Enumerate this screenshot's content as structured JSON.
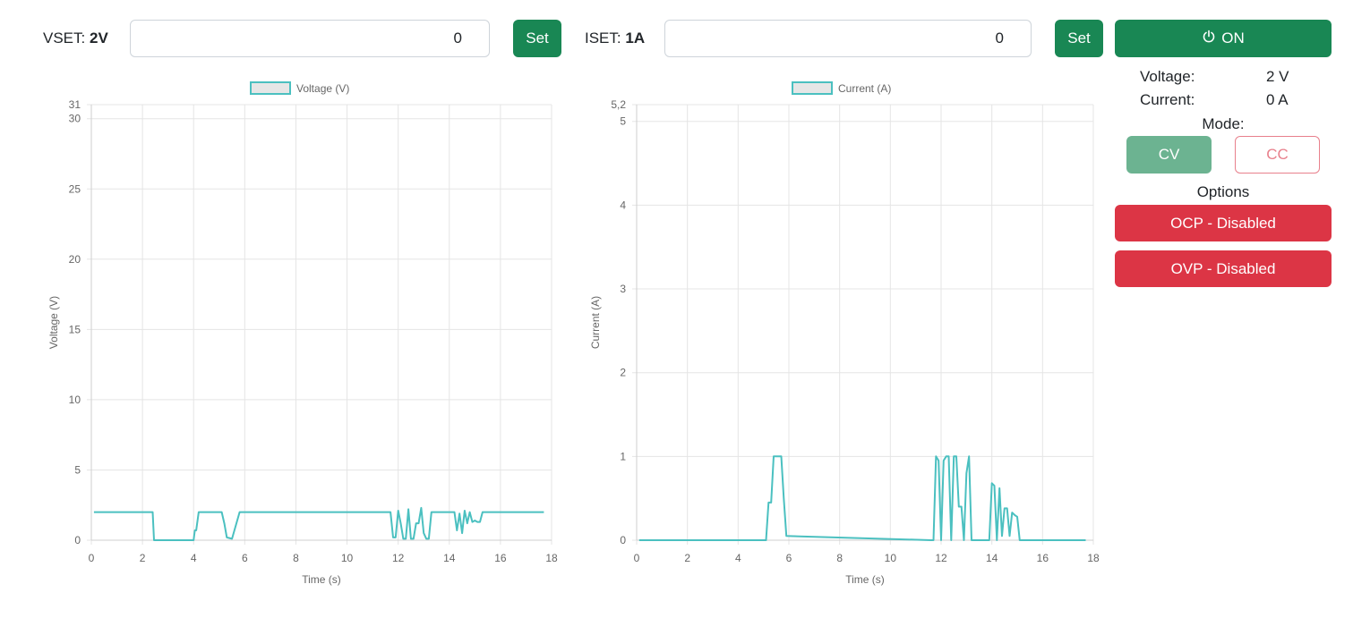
{
  "controls": {
    "vset": {
      "label": "VSET:",
      "value": "2V",
      "input_value": "0",
      "button": "Set"
    },
    "iset": {
      "label": "ISET:",
      "value": "1A",
      "input_value": "0",
      "button": "Set"
    },
    "power": {
      "label": "ON",
      "icon": "power-icon"
    }
  },
  "status": {
    "voltage_label": "Voltage:",
    "voltage_value": "2 V",
    "current_label": "Current:",
    "current_value": "0 A",
    "mode_label": "Mode:",
    "mode_cv": "CV",
    "mode_cc": "CC",
    "options_label": "Options",
    "ocp_label": "OCP - Disabled",
    "ovp_label": "OVP - Disabled"
  },
  "colors": {
    "series": "#4bc0c0",
    "green": "#198754",
    "red": "#dc3545"
  },
  "chart_data": [
    {
      "type": "line",
      "legend": "Voltage (V)",
      "xlabel": "Time (s)",
      "ylabel": "Voltage (V)",
      "xlim": [
        0,
        18
      ],
      "ylim": [
        0,
        31
      ],
      "xticks": [
        "0",
        "2",
        "4",
        "6",
        "8",
        "10",
        "12",
        "14",
        "16",
        "18"
      ],
      "xtick_values": [
        0,
        2,
        4,
        6,
        8,
        10,
        12,
        14,
        16,
        18
      ],
      "yticks": [
        "0",
        "5",
        "10",
        "15",
        "20",
        "25",
        "30",
        "31"
      ],
      "ytick_values": [
        0,
        5,
        10,
        15,
        20,
        25,
        30,
        31
      ],
      "x": [
        0.1,
        2.4,
        2.45,
        4.0,
        4.05,
        4.1,
        4.2,
        5.1,
        5.2,
        5.3,
        5.5,
        5.8,
        5.9,
        11.7,
        11.8,
        11.9,
        12.0,
        12.1,
        12.2,
        12.3,
        12.4,
        12.5,
        12.6,
        12.7,
        12.8,
        12.9,
        13.0,
        13.1,
        13.2,
        13.3,
        13.4,
        13.5,
        13.6,
        13.7,
        14.2,
        14.3,
        14.4,
        14.5,
        14.6,
        14.7,
        14.8,
        14.9,
        15.0,
        15.1,
        15.2,
        15.3,
        17.7
      ],
      "y": [
        2,
        2,
        0,
        0,
        0.7,
        0.7,
        2,
        2,
        1.2,
        0.2,
        0.1,
        2,
        2,
        2,
        0.2,
        0.2,
        2.1,
        1.2,
        0.1,
        0.1,
        2.2,
        0.1,
        0.1,
        1.2,
        1.2,
        2.3,
        0.5,
        0.1,
        0.1,
        2,
        2,
        2,
        2,
        2,
        2,
        0.7,
        1.9,
        0.5,
        2.1,
        1.2,
        2,
        1.3,
        1.4,
        1.3,
        1.3,
        2,
        2
      ]
    },
    {
      "type": "line",
      "legend": "Current (A)",
      "xlabel": "Time (s)",
      "ylabel": "Current (A)",
      "xlim": [
        0,
        18
      ],
      "ylim": [
        0,
        5.2
      ],
      "xticks": [
        "0",
        "2",
        "4",
        "6",
        "8",
        "10",
        "12",
        "14",
        "16",
        "18"
      ],
      "xtick_values": [
        0,
        2,
        4,
        6,
        8,
        10,
        12,
        14,
        16,
        18
      ],
      "yticks": [
        "0",
        "1",
        "2",
        "3",
        "4",
        "5",
        "5,2"
      ],
      "ytick_values": [
        0,
        1,
        2,
        3,
        4,
        5,
        5.2
      ],
      "x": [
        0.1,
        5.1,
        5.2,
        5.3,
        5.4,
        5.5,
        5.6,
        5.7,
        5.8,
        5.9,
        11.6,
        11.7,
        11.8,
        11.9,
        12.0,
        12.1,
        12.2,
        12.3,
        12.4,
        12.5,
        12.6,
        12.7,
        12.8,
        12.9,
        13.0,
        13.1,
        13.2,
        13.3,
        13.4,
        13.9,
        14.0,
        14.1,
        14.2,
        14.3,
        14.4,
        14.5,
        14.6,
        14.7,
        14.8,
        14.9,
        15.0,
        15.1,
        15.2,
        15.3,
        15.4,
        17.7
      ],
      "y": [
        0,
        0,
        0.45,
        0.45,
        1,
        1,
        1,
        1,
        0.5,
        0.05,
        0,
        0,
        1,
        0.95,
        0,
        0.95,
        1,
        1,
        0,
        1,
        1,
        0.4,
        0.4,
        0,
        0.8,
        1,
        0,
        0,
        0,
        0,
        0.68,
        0.65,
        0,
        0.62,
        0.05,
        0.38,
        0.38,
        0.05,
        0.33,
        0.3,
        0.28,
        0,
        0,
        0,
        0,
        0
      ]
    }
  ]
}
